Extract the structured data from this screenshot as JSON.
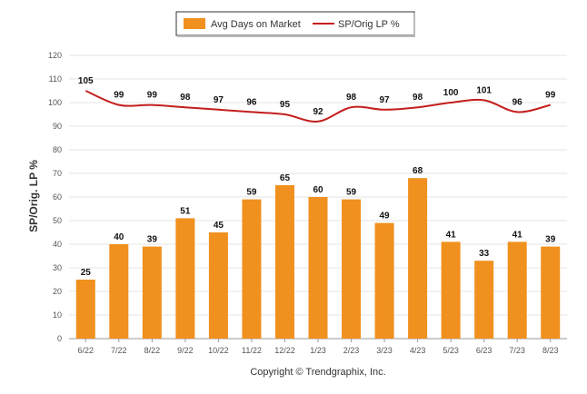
{
  "chart_data": {
    "type": "bar",
    "categories": [
      "6/22",
      "7/22",
      "8/22",
      "9/22",
      "10/22",
      "11/22",
      "12/22",
      "1/23",
      "2/23",
      "3/23",
      "4/23",
      "5/23",
      "6/23",
      "7/23",
      "8/23"
    ],
    "series": [
      {
        "name": "Avg Days on Market",
        "type": "bar",
        "color": "#f0901e",
        "values": [
          25,
          40,
          39,
          51,
          45,
          59,
          65,
          60,
          59,
          49,
          68,
          41,
          33,
          41,
          39
        ]
      },
      {
        "name": "SP/Orig LP %",
        "type": "line",
        "color": "#c41e1e",
        "values": [
          105,
          99,
          99,
          98,
          97,
          96,
          95,
          92,
          98,
          97,
          98,
          100,
          101,
          96,
          99
        ]
      }
    ],
    "ylabel": "SP/Orig. LP %",
    "ylim": [
      0,
      120
    ],
    "yticks": [
      0,
      10,
      20,
      30,
      40,
      50,
      60,
      70,
      80,
      90,
      100,
      110,
      120
    ],
    "grid": true,
    "legend": "top-center"
  },
  "footer": {
    "copyright": "Copyright © Trendgraphix, Inc."
  }
}
